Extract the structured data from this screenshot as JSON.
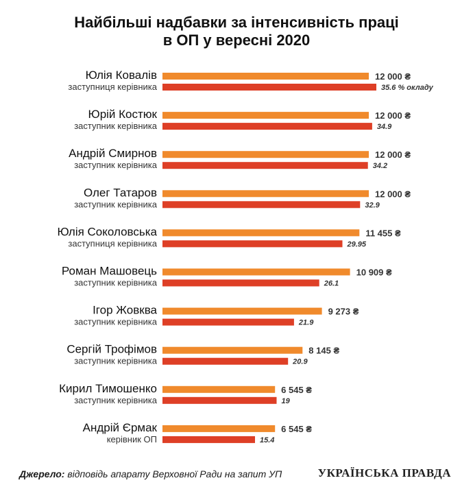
{
  "chart_data": {
    "type": "bar",
    "title_line1": "Найбільші надбавки за інтенсивність праці",
    "title_line2": "в ОП у вересні 2020",
    "categories": [
      "Юлія Ковалів",
      "Юрій Костюк",
      "Андрій Смирнов",
      "Олег Татаров",
      "Юлія Соколовська",
      "Роман Машовець",
      "Ігор Жовква",
      "Сергій Трофімов",
      "Кирил Тимошенко",
      "Андрій Єрмак"
    ],
    "roles": [
      "заступниця керівника",
      "заступник керівника",
      "заступник керівника",
      "заступник керівника",
      "заступниця керівника",
      "заступник керівника",
      "заступник керівника",
      "заступник керівника",
      "заступник керівника",
      "керівник ОП"
    ],
    "series": [
      {
        "values": [
          12000,
          12000,
          12000,
          12000,
          11455,
          10909,
          9273,
          8145,
          6545,
          6545
        ],
        "color": "#f08a2c"
      },
      {
        "values": [
          35.6,
          34.9,
          34.2,
          32.9,
          29.95,
          26.1,
          21.9,
          20.9,
          19,
          15.4
        ],
        "color": "#de3f26"
      }
    ],
    "amount_labels": [
      "12 000 ₴",
      "12 000 ₴",
      "12 000 ₴",
      "12 000 ₴",
      "11 455 ₴",
      "10 909 ₴",
      "9 273 ₴",
      "8 145 ₴",
      "6 545 ₴",
      "6 545 ₴"
    ],
    "percent_labels": [
      "35.6 % окладу",
      "34.9",
      "34.2",
      "32.9",
      "29.95",
      "26.1",
      "21.9",
      "20.9",
      "19",
      "15.4"
    ]
  },
  "source_label": "Джерело:",
  "source_text": " відповідь апарату Верховної Ради на запит УП",
  "logo_text": "УКРАЇНСЬКА ПРАВДА"
}
